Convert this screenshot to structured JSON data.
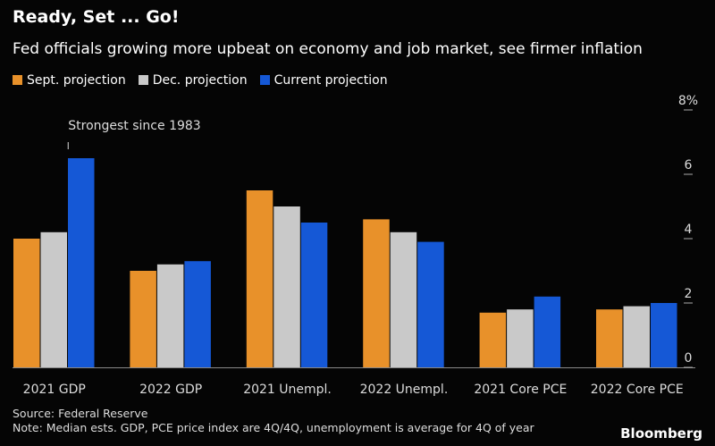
{
  "title": "Ready, Set ... Go!",
  "subtitle": "Fed officials growing more upbeat on economy and job market, see firmer inflation",
  "source": "Source: Federal Reserve",
  "note": "Note: Median ests. GDP, PCE price index are 4Q/4Q, unemployment is average for 4Q of year",
  "brand": "Bloomberg",
  "chart_data": {
    "type": "bar",
    "categories": [
      "2021 GDP",
      "2022 GDP",
      "2021 Unempl.",
      "2022 Unempl.",
      "2021 Core PCE",
      "2022 Core PCE"
    ],
    "series": [
      {
        "name": "Sept. projection",
        "color": "#E8912A",
        "values": [
          4.0,
          3.0,
          5.5,
          4.6,
          1.7,
          1.8
        ]
      },
      {
        "name": "Dec. projection",
        "color": "#C9C9C9",
        "values": [
          4.2,
          3.2,
          5.0,
          4.2,
          1.8,
          1.9
        ]
      },
      {
        "name": "Current projection",
        "color": "#1558D6",
        "values": [
          6.5,
          3.3,
          4.5,
          3.9,
          2.2,
          2.0
        ]
      }
    ],
    "yticks": [
      "0",
      "2",
      "4",
      "6",
      "8%"
    ],
    "ylim": [
      0,
      8
    ],
    "axis_side": "right",
    "grid": false,
    "legend": "top-left",
    "annotation": "Strongest since 1983"
  }
}
